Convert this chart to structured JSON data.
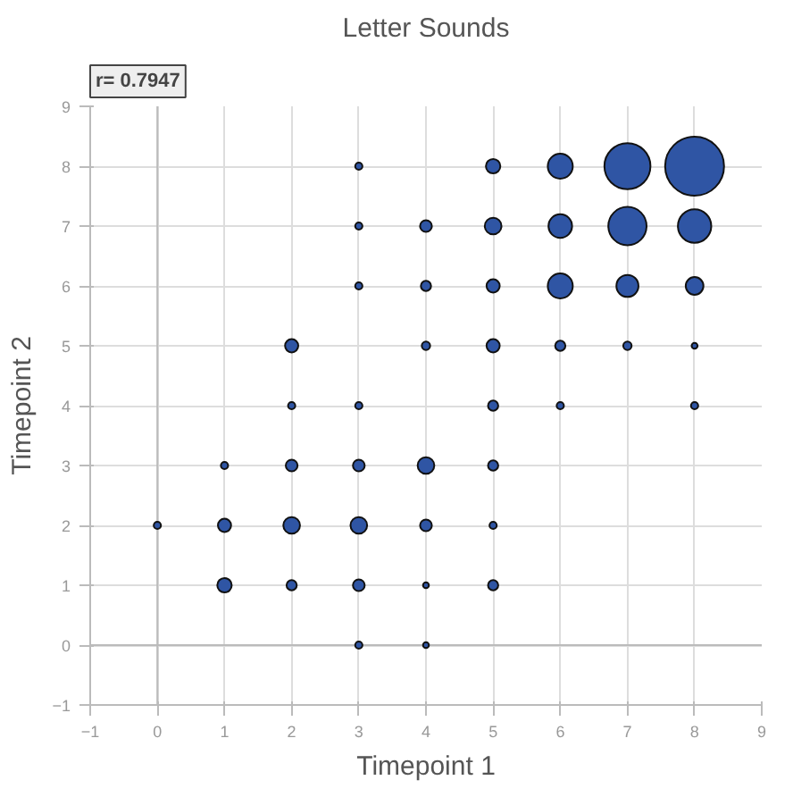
{
  "chart_data": {
    "type": "bubble",
    "title": "Letter Sounds",
    "xlabel": "Timepoint 1",
    "ylabel": "Timepoint 2",
    "annotations": [
      "r= 0.7947"
    ],
    "x": [
      8,
      7,
      6,
      5,
      3,
      8,
      7,
      6,
      5,
      4,
      3,
      8,
      7,
      6,
      5,
      4,
      3,
      2,
      4,
      5,
      6,
      7,
      8,
      2,
      3,
      5,
      6,
      8,
      1,
      2,
      3,
      4,
      5,
      0,
      1,
      2,
      3,
      4,
      5,
      1,
      2,
      3,
      4,
      5,
      3,
      4
    ],
    "values": [
      8,
      8,
      8,
      8,
      8,
      7,
      7,
      7,
      7,
      7,
      7,
      6,
      6,
      6,
      6,
      6,
      6,
      5,
      5,
      5,
      5,
      5,
      5,
      4,
      4,
      4,
      4,
      4,
      3,
      3,
      3,
      3,
      3,
      2,
      2,
      2,
      2,
      2,
      2,
      1,
      1,
      1,
      1,
      1,
      0,
      0
    ],
    "sizes": [
      1,
      0.61,
      0.18,
      0.06,
      0.015,
      0.32,
      0.42,
      0.16,
      0.08,
      0.04,
      0.015,
      0.09,
      0.14,
      0.18,
      0.05,
      0.03,
      0.015,
      0.05,
      0.02,
      0.05,
      0.03,
      0.02,
      0.01,
      0.015,
      0.015,
      0.03,
      0.015,
      0.015,
      0.015,
      0.04,
      0.04,
      0.08,
      0.03,
      0.015,
      0.05,
      0.08,
      0.08,
      0.04,
      0.015,
      0.06,
      0.03,
      0.04,
      0.01,
      0.03,
      0.015,
      0.01
    ],
    "color": "#2f55a4",
    "xlim": [
      -1,
      9
    ],
    "ylim": [
      -1,
      9
    ],
    "xticks": [
      -1,
      0,
      1,
      2,
      3,
      4,
      5,
      6,
      7,
      8,
      9
    ],
    "yticks": [
      -1,
      0,
      1,
      2,
      3,
      4,
      5,
      6,
      7,
      8,
      9
    ],
    "grid": true
  }
}
